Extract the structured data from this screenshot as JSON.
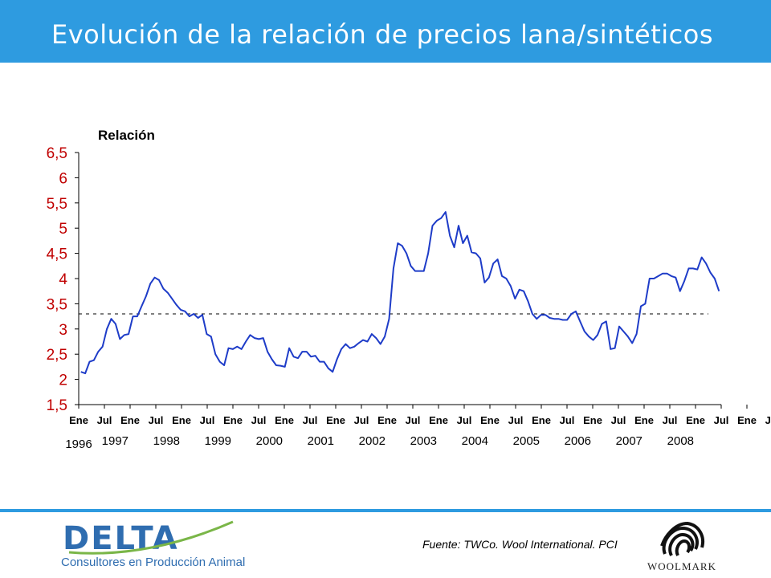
{
  "header": {
    "title": "Evolución de la relación de precios lana/sintéticos"
  },
  "footer": {
    "logo_name": "DELTA",
    "logo_tagline": "Consultores en Producción Animal",
    "source": "Fuente: TWCo. Wool International. PCI",
    "woolmark_name": "WOOLMARK"
  },
  "colors": {
    "accent": "#2e9be0",
    "line": "#1e3cc8",
    "axis_labels": "#c00000",
    "brand": "#2f6db0"
  },
  "chart_data": {
    "type": "line",
    "ylabel": "Relación",
    "ylim": [
      1.5,
      6.5
    ],
    "yticks": [
      "1,5",
      "2",
      "2,5",
      "3",
      "3,5",
      "4",
      "4,5",
      "5",
      "5,5",
      "6",
      "6,5"
    ],
    "x_month_labels": [
      "Ene",
      "Jul",
      "Ene",
      "Jul",
      "Ene",
      "Jul",
      "Ene",
      "Jul",
      "Ene",
      "Jul",
      "Ene",
      "Jul",
      "Ene",
      "Jul",
      "Ene",
      "Jul",
      "Ene",
      "Jul",
      "Ene",
      "Jul",
      "Ene",
      "Jul",
      "Ene",
      "Jul",
      "Ene",
      "Jul",
      "Ene",
      "Jul"
    ],
    "year_labels": [
      "1996",
      "1997",
      "1998",
      "1999",
      "2000",
      "2001",
      "2002",
      "2003",
      "2004",
      "2005",
      "2006",
      "2007",
      "2008"
    ],
    "x_range": [
      "1996-01",
      "2008-07"
    ],
    "reference_line": 3.3,
    "series": [
      {
        "values": [
          2.15,
          2.12,
          2.35,
          2.38,
          2.55,
          2.65,
          3.0,
          3.2,
          3.1,
          2.8,
          2.88,
          2.9,
          3.25,
          3.25,
          3.45,
          3.65,
          3.9,
          4.02,
          3.97,
          3.8,
          3.72,
          3.6,
          3.48,
          3.38,
          3.35,
          3.25,
          3.3,
          3.22,
          3.28,
          2.9,
          2.85,
          2.5,
          2.35,
          2.28,
          2.62,
          2.6,
          2.65,
          2.6,
          2.75,
          2.88,
          2.82,
          2.8,
          2.82,
          2.55,
          2.4,
          2.28,
          2.27,
          2.25,
          2.62,
          2.45,
          2.42,
          2.55,
          2.55,
          2.45,
          2.47,
          2.35,
          2.35,
          2.22,
          2.15,
          2.4,
          2.6,
          2.7,
          2.62,
          2.65,
          2.72,
          2.78,
          2.75,
          2.9,
          2.82,
          2.7,
          2.85,
          3.2,
          4.2,
          4.7,
          4.65,
          4.5,
          4.25,
          4.15,
          4.15,
          4.15,
          4.5,
          5.05,
          5.15,
          5.2,
          5.32,
          4.85,
          4.62,
          5.05,
          4.7,
          4.85,
          4.52,
          4.5,
          4.4,
          3.92,
          4.02,
          4.3,
          4.38,
          4.05,
          4.0,
          3.85,
          3.6,
          3.78,
          3.75,
          3.55,
          3.3,
          3.2,
          3.28,
          3.28,
          3.22,
          3.2,
          3.2,
          3.18,
          3.18,
          3.3,
          3.35,
          3.15,
          2.95,
          2.85,
          2.78,
          2.88,
          3.1,
          3.15,
          2.6,
          2.62,
          3.05,
          2.95,
          2.85,
          2.72,
          2.9,
          3.45,
          3.5,
          4.0,
          4.0,
          4.05,
          4.1,
          4.1,
          4.05,
          4.02,
          3.75,
          3.95,
          4.2,
          4.2,
          4.18,
          4.42,
          4.3,
          4.12,
          4.0,
          3.75
        ]
      }
    ]
  }
}
